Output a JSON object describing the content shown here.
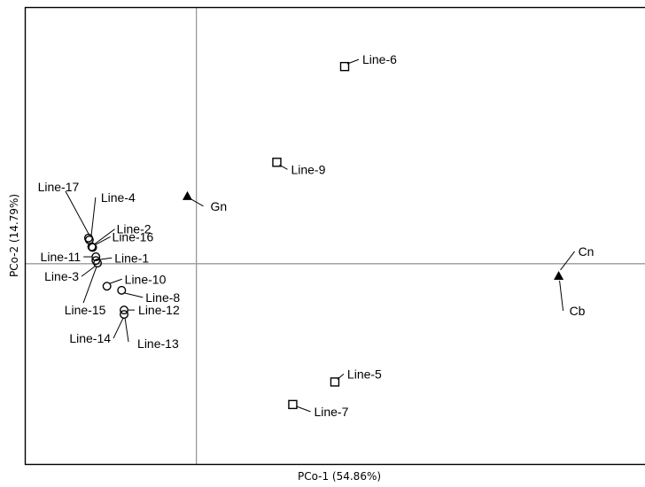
{
  "chart_data": {
    "type": "scatter",
    "title": "",
    "xlabel": "PCo-1 (54.86%)",
    "ylabel": "PCo-2 (14.79%)",
    "xlim": [
      -0.42,
      1.12
    ],
    "ylim": [
      -0.64,
      0.82
    ],
    "grid": false,
    "reference_lines": {
      "x": 0,
      "y": 0
    },
    "colors": {
      "marker": "#000000",
      "frame": "#000000",
      "reference_line": "#999999"
    },
    "series": [
      {
        "marker": "circle",
        "points": [
          {
            "label": "Line-1",
            "x": -0.246,
            "y": 0.01
          },
          {
            "label": "Line-2",
            "x": -0.256,
            "y": 0.054
          },
          {
            "label": "Line-3",
            "x": -0.242,
            "y": 0.002
          },
          {
            "label": "Line-4",
            "x": -0.262,
            "y": 0.076
          },
          {
            "label": "Line-8",
            "x": -0.183,
            "y": -0.085
          },
          {
            "label": "Line-10",
            "x": -0.219,
            "y": -0.072
          },
          {
            "label": "Line-11",
            "x": -0.246,
            "y": 0.022
          },
          {
            "label": "Line-12",
            "x": -0.177,
            "y": -0.148
          },
          {
            "label": "Line-13",
            "x": -0.177,
            "y": -0.162
          },
          {
            "label": "Line-14",
            "x": -0.177,
            "y": -0.162
          },
          {
            "label": "Line-15",
            "x": -0.242,
            "y": 0.002
          },
          {
            "label": "Line-16",
            "x": -0.254,
            "y": 0.052
          },
          {
            "label": "Line-17",
            "x": -0.264,
            "y": 0.082
          }
        ]
      },
      {
        "marker": "square",
        "points": [
          {
            "label": "Line-5",
            "x": 0.339,
            "y": -0.378
          },
          {
            "label": "Line-6",
            "x": 0.363,
            "y": 0.63
          },
          {
            "label": "Line-7",
            "x": 0.236,
            "y": -0.45
          },
          {
            "label": "Line-9",
            "x": 0.197,
            "y": 0.324
          }
        ]
      },
      {
        "marker": "triangle",
        "points": [
          {
            "label": "Gn",
            "x": -0.022,
            "y": 0.215
          },
          {
            "label": "Cn",
            "x": 0.887,
            "y": -0.04
          },
          {
            "label": "Cb",
            "x": 0.887,
            "y": -0.04
          }
        ]
      }
    ]
  }
}
